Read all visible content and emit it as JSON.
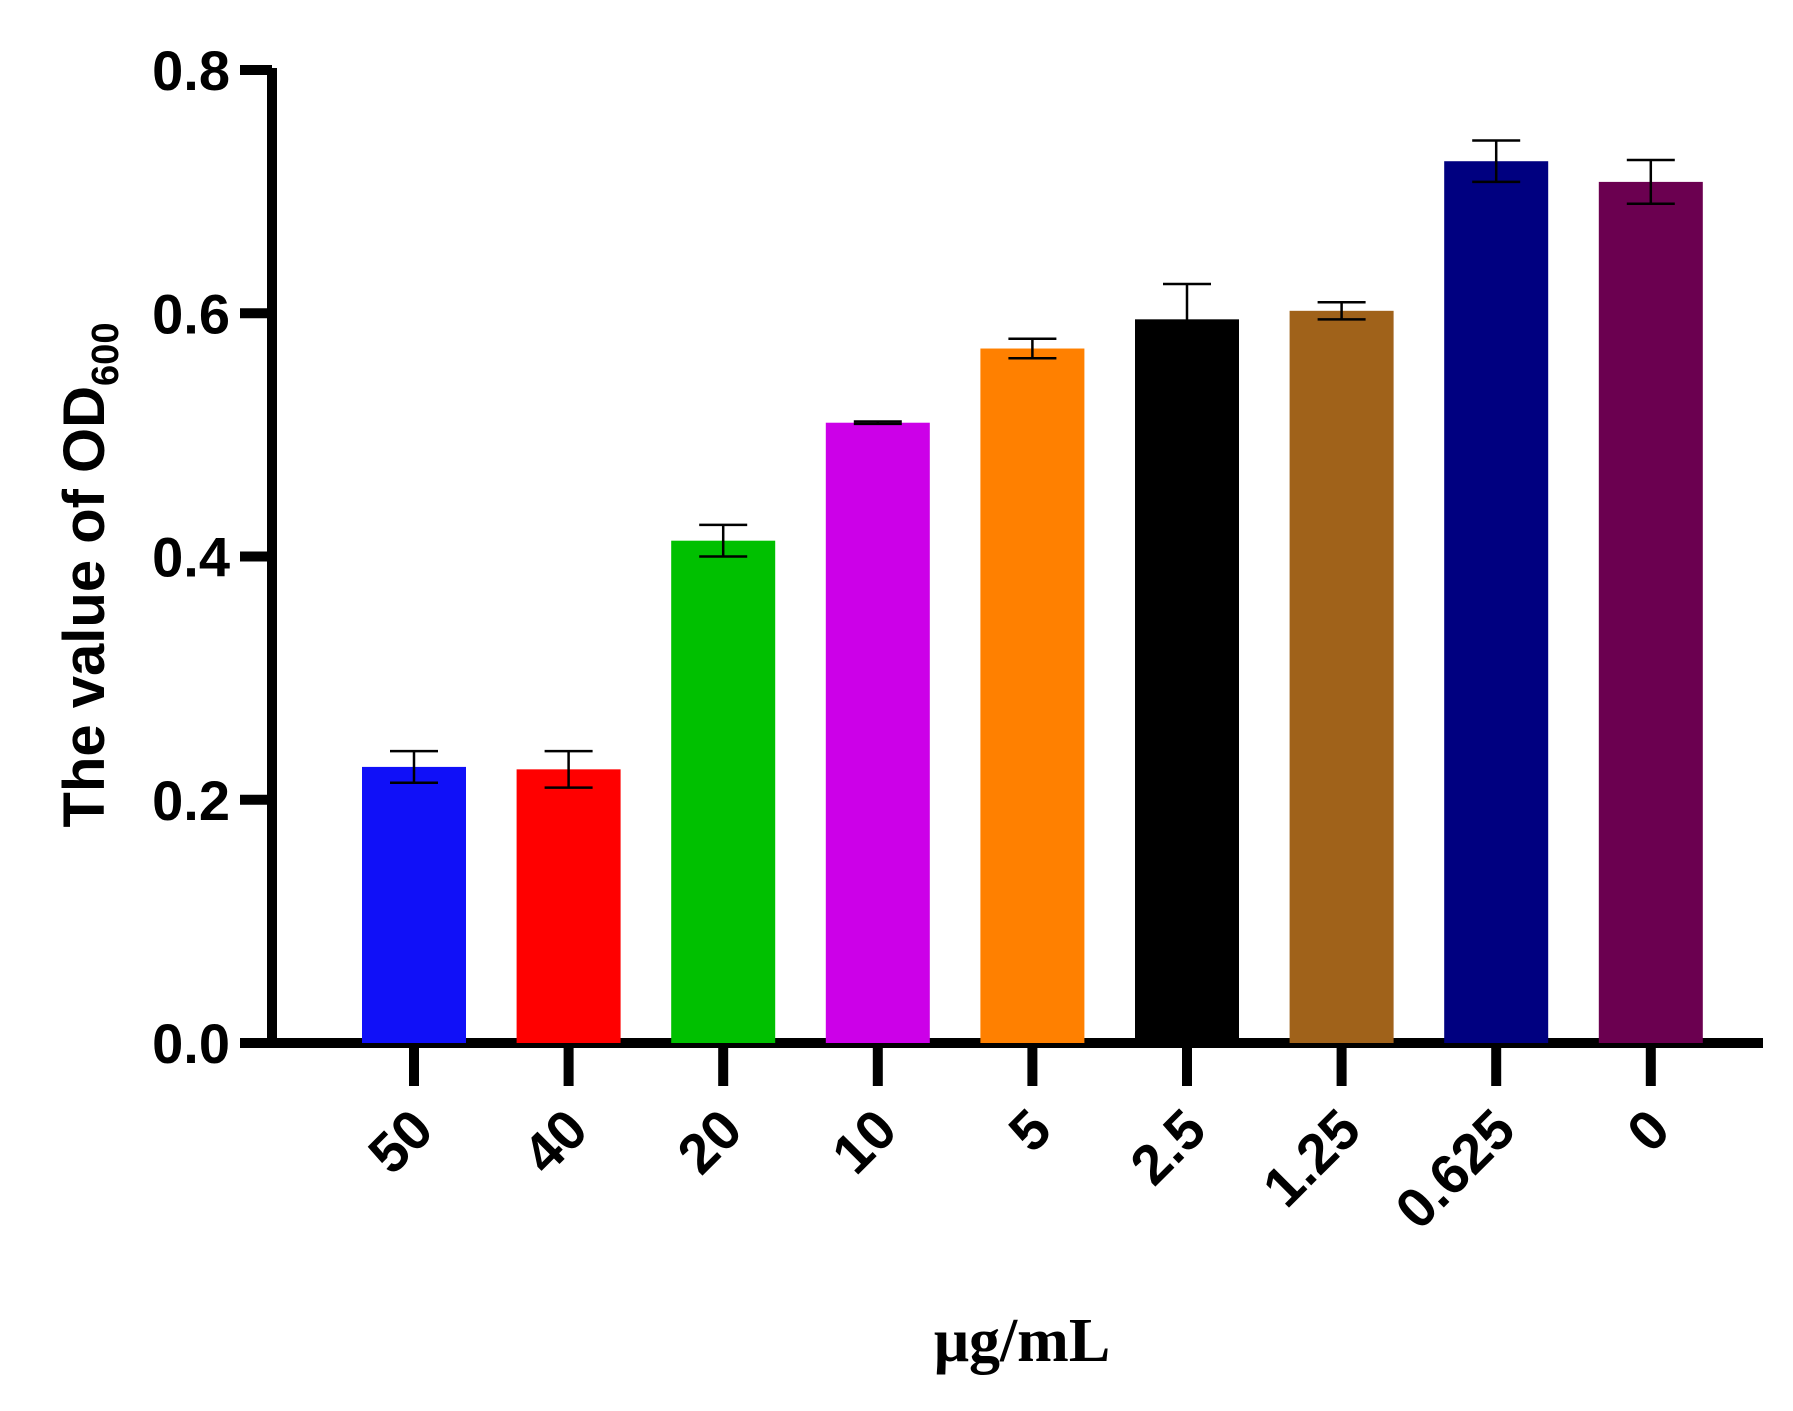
{
  "chart_data": {
    "type": "bar",
    "categories": [
      "50",
      "40",
      "20",
      "10",
      "5",
      "2.5",
      "1.25",
      "0.625",
      "0"
    ],
    "values": [
      0.227,
      0.225,
      0.413,
      0.51,
      0.571,
      0.595,
      0.602,
      0.725,
      0.708
    ],
    "errors": [
      0.013,
      0.015,
      0.013,
      0.001,
      0.008,
      0.029,
      0.007,
      0.017,
      0.018
    ],
    "colors": [
      "#1010F8",
      "#FF0000",
      "#00C000",
      "#CC00E8",
      "#FF8000",
      "#000000",
      "#A0621A",
      "#000080",
      "#6B0050"
    ],
    "title": "",
    "xlabel": "μg/mL",
    "ylabel": "The value of OD",
    "ylabel_subscript": "600",
    "ylim": [
      0,
      0.8
    ],
    "yticks": [
      "0.0",
      "0.2",
      "0.4",
      "0.6",
      "0.8"
    ],
    "grid": false
  }
}
